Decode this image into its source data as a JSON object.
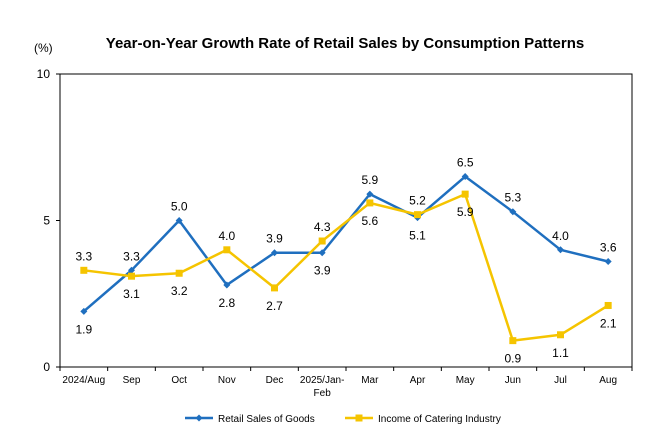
{
  "chart_data": {
    "type": "line",
    "title": "Year-on-Year Growth Rate of Retail Sales by Consumption Patterns",
    "unit_label": "(%)",
    "ylim": [
      0,
      10
    ],
    "yticks": [
      "0",
      "5",
      "10"
    ],
    "categories": [
      "2024/Aug",
      "Sep",
      "Oct",
      "Nov",
      "Dec",
      "2025/Jan-Feb",
      "Mar",
      "Apr",
      "May",
      "Jun",
      "Jul",
      "Aug"
    ],
    "category_lines": [
      [
        "2024/Aug"
      ],
      [
        "Sep"
      ],
      [
        "Oct"
      ],
      [
        "Nov"
      ],
      [
        "Dec"
      ],
      [
        "2025/Jan-",
        "Feb"
      ],
      [
        "Mar"
      ],
      [
        "Apr"
      ],
      [
        "May"
      ],
      [
        "Jun"
      ],
      [
        "Jul"
      ],
      [
        "Aug"
      ]
    ],
    "series": [
      {
        "name": "Retail Sales of Goods",
        "color": "#1F6FBF",
        "marker": "diamond",
        "values": [
          1.9,
          3.3,
          5.0,
          2.8,
          3.9,
          3.9,
          5.9,
          5.1,
          6.5,
          5.3,
          4.0,
          3.6
        ],
        "labels": [
          "1.9",
          "3.3",
          "5.0",
          "2.8",
          "3.9",
          "3.9",
          "5.9",
          "5.1",
          "6.5",
          "5.3",
          "4.0",
          "3.6"
        ],
        "label_pos": [
          "below",
          "above",
          "above",
          "below",
          "above",
          "below",
          "above",
          "below",
          "above",
          "above",
          "above",
          "above"
        ]
      },
      {
        "name": "Income of Catering Industry",
        "color": "#F5C400",
        "marker": "square",
        "values": [
          3.3,
          3.1,
          3.2,
          4.0,
          2.7,
          4.3,
          5.6,
          5.2,
          5.9,
          0.9,
          1.1,
          2.1
        ],
        "labels": [
          "3.3",
          "3.1",
          "3.2",
          "4.0",
          "2.7",
          "4.3",
          "5.6",
          "5.2",
          "5.9",
          "0.9",
          "1.1",
          "2.1"
        ],
        "label_pos": [
          "above",
          "below",
          "below",
          "above",
          "below",
          "above",
          "below",
          "above",
          "below",
          "below",
          "below",
          "below"
        ]
      }
    ],
    "grid": false,
    "legend_position": "bottom"
  }
}
